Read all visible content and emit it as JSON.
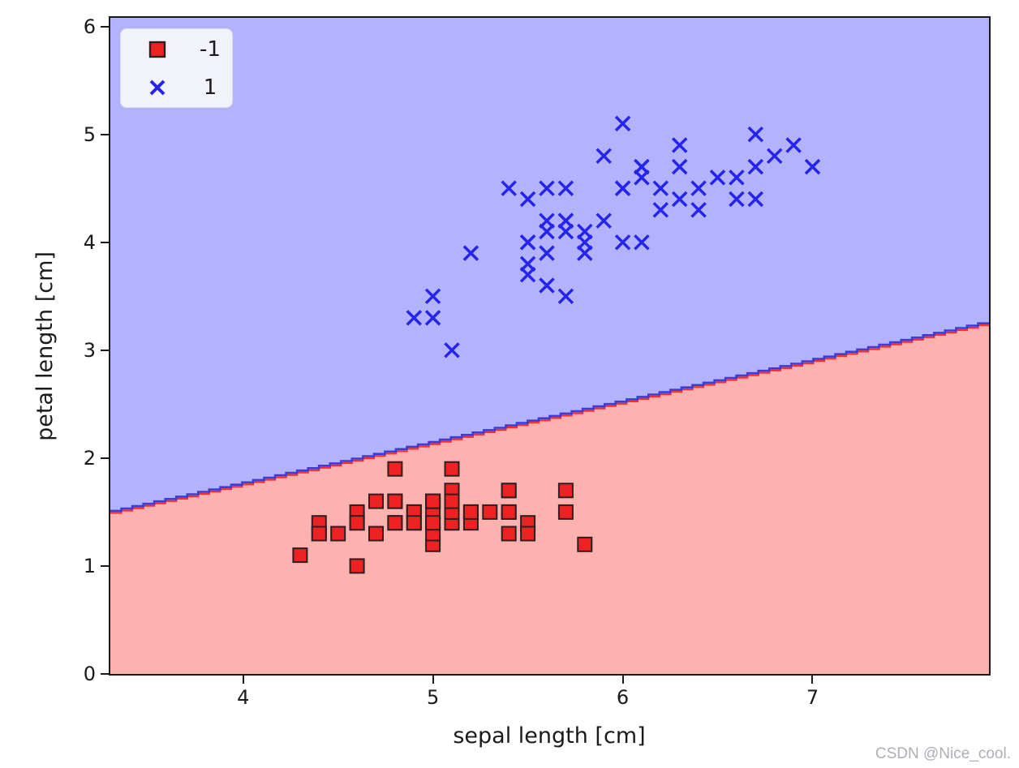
{
  "figure": {
    "watermark": "CSDN @Nice_cool."
  },
  "chart_data": {
    "type": "scatter",
    "title": "",
    "xlabel": "sepal length [cm]",
    "ylabel": "petal length [cm]",
    "xlim": [
      3.3,
      7.93
    ],
    "ylim": [
      0,
      6.08
    ],
    "xticks": [
      4,
      5,
      6,
      7
    ],
    "yticks": [
      0,
      1,
      2,
      3,
      4,
      5,
      6
    ],
    "grid": false,
    "legend_position": "upper left",
    "series": [
      {
        "name": "-1",
        "marker": "square",
        "color": "#ee2222",
        "edge_color": "#2b2020",
        "points": [
          [
            5.1,
            1.4
          ],
          [
            4.9,
            1.4
          ],
          [
            4.7,
            1.3
          ],
          [
            4.6,
            1.5
          ],
          [
            5.0,
            1.4
          ],
          [
            5.4,
            1.7
          ],
          [
            4.6,
            1.4
          ],
          [
            5.0,
            1.5
          ],
          [
            4.4,
            1.4
          ],
          [
            4.9,
            1.5
          ],
          [
            5.4,
            1.5
          ],
          [
            4.8,
            1.6
          ],
          [
            4.8,
            1.4
          ],
          [
            4.3,
            1.1
          ],
          [
            5.8,
            1.2
          ],
          [
            5.7,
            1.5
          ],
          [
            5.4,
            1.3
          ],
          [
            5.1,
            1.4
          ],
          [
            5.7,
            1.7
          ],
          [
            5.1,
            1.5
          ],
          [
            5.4,
            1.7
          ],
          [
            5.1,
            1.5
          ],
          [
            4.6,
            1.0
          ],
          [
            5.1,
            1.7
          ],
          [
            4.8,
            1.9
          ],
          [
            5.0,
            1.6
          ],
          [
            5.0,
            1.6
          ],
          [
            5.2,
            1.5
          ],
          [
            5.2,
            1.4
          ],
          [
            4.7,
            1.6
          ],
          [
            4.8,
            1.6
          ],
          [
            5.4,
            1.5
          ],
          [
            5.2,
            1.5
          ],
          [
            5.5,
            1.4
          ],
          [
            4.9,
            1.5
          ],
          [
            5.0,
            1.2
          ],
          [
            5.5,
            1.3
          ],
          [
            4.9,
            1.4
          ],
          [
            4.4,
            1.3
          ],
          [
            5.1,
            1.5
          ],
          [
            5.0,
            1.3
          ],
          [
            4.5,
            1.3
          ],
          [
            4.4,
            1.3
          ],
          [
            5.0,
            1.6
          ],
          [
            5.1,
            1.9
          ],
          [
            4.8,
            1.4
          ],
          [
            5.1,
            1.6
          ],
          [
            4.6,
            1.4
          ],
          [
            5.3,
            1.5
          ],
          [
            5.0,
            1.4
          ]
        ]
      },
      {
        "name": "1",
        "marker": "x",
        "color": "#2424ee",
        "points": [
          [
            7.0,
            4.7
          ],
          [
            6.4,
            4.5
          ],
          [
            6.9,
            4.9
          ],
          [
            5.5,
            4.0
          ],
          [
            6.5,
            4.6
          ],
          [
            5.7,
            4.5
          ],
          [
            6.3,
            4.7
          ],
          [
            4.9,
            3.3
          ],
          [
            6.6,
            4.6
          ],
          [
            5.2,
            3.9
          ],
          [
            5.0,
            3.5
          ],
          [
            5.9,
            4.2
          ],
          [
            6.0,
            4.0
          ],
          [
            6.1,
            4.7
          ],
          [
            5.6,
            3.6
          ],
          [
            6.7,
            4.4
          ],
          [
            5.6,
            4.5
          ],
          [
            5.8,
            4.1
          ],
          [
            6.2,
            4.5
          ],
          [
            5.6,
            3.9
          ],
          [
            5.9,
            4.8
          ],
          [
            6.1,
            4.0
          ],
          [
            6.3,
            4.9
          ],
          [
            6.1,
            4.7
          ],
          [
            6.4,
            4.3
          ],
          [
            6.6,
            4.4
          ],
          [
            6.8,
            4.8
          ],
          [
            6.7,
            5.0
          ],
          [
            6.0,
            4.5
          ],
          [
            5.7,
            3.5
          ],
          [
            5.5,
            3.8
          ],
          [
            5.5,
            3.7
          ],
          [
            5.8,
            3.9
          ],
          [
            6.0,
            5.1
          ],
          [
            5.4,
            4.5
          ],
          [
            6.0,
            4.5
          ],
          [
            6.7,
            4.7
          ],
          [
            6.3,
            4.4
          ],
          [
            5.6,
            4.1
          ],
          [
            5.5,
            4.0
          ],
          [
            5.5,
            4.4
          ],
          [
            6.1,
            4.6
          ],
          [
            5.8,
            4.0
          ],
          [
            5.0,
            3.3
          ],
          [
            5.6,
            4.2
          ],
          [
            5.7,
            4.2
          ],
          [
            5.7,
            4.2
          ],
          [
            6.2,
            4.3
          ],
          [
            5.1,
            3.0
          ],
          [
            5.7,
            4.1
          ]
        ]
      }
    ],
    "decision_boundary": {
      "x1": 3.3,
      "y1": 1.5,
      "x2": 7.93,
      "y2": 3.26,
      "upper_line_color": "#3c3cd8",
      "lower_line_color": "#ff2a2a"
    },
    "regions": {
      "upper_class": "1",
      "upper_color": "#b2b2fd",
      "lower_class": "-1",
      "lower_color": "#fdb2b0"
    }
  }
}
